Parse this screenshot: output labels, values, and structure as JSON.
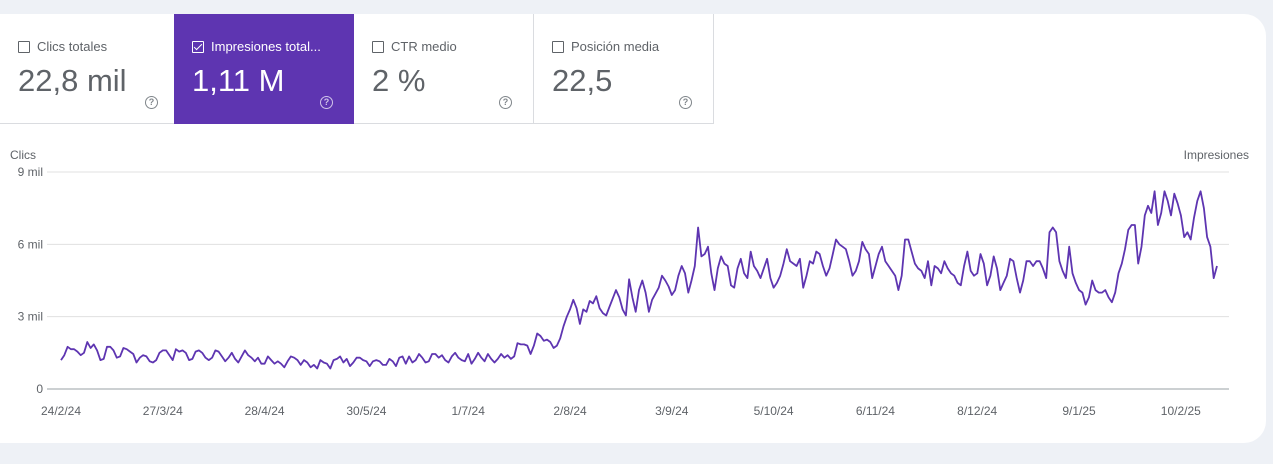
{
  "metrics": [
    {
      "label": "Clics totales",
      "value": "22,8 mil",
      "checked": false
    },
    {
      "label": "Impresiones total...",
      "value": "1,11 M",
      "checked": true
    },
    {
      "label": "CTR medio",
      "value": "2 %",
      "checked": false
    },
    {
      "label": "Posición media",
      "value": "22,5",
      "checked": false
    }
  ],
  "help_glyph": "?",
  "colors": {
    "accent": "#5e35b1",
    "series": "#5e35b1",
    "grid": "#e0e0e0",
    "text": "#5f6368"
  },
  "chart_data": {
    "type": "line",
    "left_axis_label": "Clics",
    "right_axis_label": "Impresiones",
    "y_ticks": [
      {
        "value": 0,
        "label": "0"
      },
      {
        "value": 3000,
        "label": "3 mil"
      },
      {
        "value": 6000,
        "label": "6 mil"
      },
      {
        "value": 9000,
        "label": "9 mil"
      }
    ],
    "ylim": [
      0,
      9000
    ],
    "x_ticks": [
      "24/2/24",
      "27/3/24",
      "28/4/24",
      "30/5/24",
      "1/7/24",
      "2/8/24",
      "3/9/24",
      "5/10/24",
      "6/11/24",
      "8/12/24",
      "9/1/25",
      "10/2/25"
    ],
    "x_range": [
      "24/2/24",
      "28/2/25"
    ],
    "grid": true,
    "series": [
      {
        "values": [
          1200,
          1400,
          1750,
          1650,
          1650,
          1550,
          1400,
          1500,
          1950,
          1700,
          1850,
          1600,
          1200,
          1250,
          1750,
          1750,
          1600,
          1300,
          1350,
          1700,
          1650,
          1550,
          1450,
          1100,
          1300,
          1400,
          1350,
          1150,
          1100,
          1200,
          1500,
          1600,
          1600,
          1400,
          1200,
          1650,
          1550,
          1600,
          1500,
          1200,
          1250,
          1550,
          1600,
          1500,
          1300,
          1200,
          1300,
          1600,
          1550,
          1350,
          1150,
          1300,
          1500,
          1250,
          1100,
          1350,
          1600,
          1400,
          1300,
          1150,
          1300,
          1050,
          1050,
          1350,
          1200,
          1050,
          1150,
          1050,
          900,
          1150,
          1350,
          1300,
          1200,
          1000,
          1200,
          1100,
          900,
          1000,
          850,
          1200,
          1100,
          1050,
          850,
          1200,
          1250,
          1350,
          1100,
          1250,
          950,
          1100,
          1300,
          1300,
          1200,
          1150,
          950,
          1150,
          1200,
          1150,
          1000,
          1000,
          1250,
          1150,
          950,
          1300,
          1350,
          1050,
          1350,
          1100,
          1200,
          1450,
          1300,
          1100,
          1150,
          1450,
          1450,
          1300,
          1400,
          1200,
          1100,
          1350,
          1500,
          1300,
          1200,
          1150,
          1450,
          1050,
          1250,
          1500,
          1300,
          1150,
          1450,
          1250,
          1100,
          1250,
          1450,
          1300,
          1400,
          1250,
          1350,
          1900,
          1850,
          1850,
          1800,
          1450,
          1800,
          2300,
          2200,
          2000,
          2050,
          1950,
          1700,
          1800,
          2100,
          2600,
          3000,
          3300,
          3700,
          3350,
          2700,
          3300,
          3200,
          3650,
          3550,
          3850,
          3350,
          3150,
          3050,
          3400,
          3750,
          4100,
          3800,
          3300,
          3050,
          4550,
          3800,
          3200,
          4100,
          4500,
          4000,
          3200,
          3700,
          3950,
          4200,
          4700,
          4500,
          4250,
          3900,
          4100,
          4700,
          5100,
          4800,
          4000,
          4500,
          5100,
          6700,
          5500,
          5600,
          5900,
          4800,
          4100,
          5000,
          5500,
          5200,
          5100,
          4300,
          4200,
          5000,
          5400,
          4800,
          4600,
          5700,
          5100,
          4900,
          4600,
          5000,
          5400,
          4600,
          4200,
          4400,
          4700,
          5200,
          5800,
          5300,
          5200,
          5100,
          5400,
          4200,
          4700,
          5300,
          5200,
          5700,
          5600,
          5100,
          4700,
          5000,
          5600,
          6200,
          6000,
          5900,
          5800,
          5300,
          4700,
          4900,
          5300,
          6100,
          5800,
          5600,
          4600,
          5100,
          5600,
          5900,
          5300,
          5100,
          4900,
          4700,
          4100,
          4700,
          6200,
          6200,
          5700,
          5200,
          5000,
          4900,
          4600,
          5300,
          4300,
          5100,
          5000,
          4800,
          5300,
          5000,
          4800,
          4700,
          4400,
          4300,
          5100,
          5700,
          4900,
          4700,
          4800,
          5600,
          5200,
          4300,
          4700,
          5500,
          5000,
          4100,
          4400,
          4700,
          5400,
          5300,
          4600,
          4000,
          4500,
          5300,
          5300,
          5100,
          5300,
          5300,
          5000,
          4600,
          6500,
          6700,
          6500,
          5300,
          4900,
          4600,
          5900,
          4800,
          4400,
          4100,
          4000,
          3500,
          3800,
          4500,
          4100,
          4000,
          4000,
          4100,
          3800,
          3600,
          4000,
          4800,
          5200,
          5800,
          6600,
          6800,
          6800,
          5200,
          5900,
          7200,
          7600,
          7300,
          8200,
          6800,
          7300,
          8200,
          7800,
          7200,
          8100,
          7700,
          7200,
          6300,
          6500,
          6200,
          7100,
          7800,
          8200,
          7500,
          6300,
          5900,
          4600,
          5100
        ]
      }
    ]
  }
}
